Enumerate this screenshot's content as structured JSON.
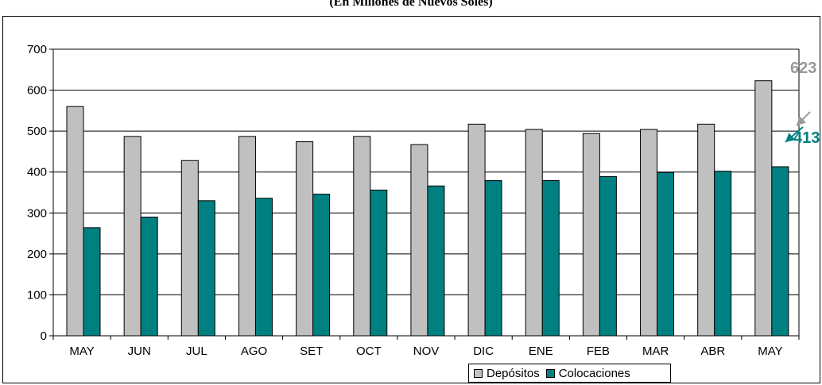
{
  "subtitle": "(En Millones de Nuevos Soles)",
  "chart_data": {
    "type": "bar",
    "categories": [
      "MAY",
      "JUN",
      "JUL",
      "AGO",
      "SET",
      "OCT",
      "NOV",
      "DIC",
      "ENE",
      "FEB",
      "MAR",
      "ABR",
      "MAY"
    ],
    "series": [
      {
        "name": "Depósitos",
        "color": "#c0c0c0",
        "values": [
          560,
          487,
          428,
          487,
          474,
          487,
          467,
          517,
          504,
          494,
          504,
          517,
          623
        ]
      },
      {
        "name": "Colocaciones",
        "color": "#008080",
        "values": [
          264,
          290,
          330,
          336,
          346,
          356,
          366,
          379,
          379,
          389,
          399,
          402,
          413
        ]
      }
    ],
    "ylim": [
      0,
      700
    ],
    "yticks": [
      "0",
      "100",
      "200",
      "300",
      "400",
      "500",
      "600",
      "700"
    ],
    "grid": true,
    "legend_position": "bottom",
    "annotations": [
      {
        "text": "623",
        "color": "#999999",
        "series": "Depósitos"
      },
      {
        "text": "413",
        "color": "#008080",
        "series": "Colocaciones"
      }
    ]
  }
}
